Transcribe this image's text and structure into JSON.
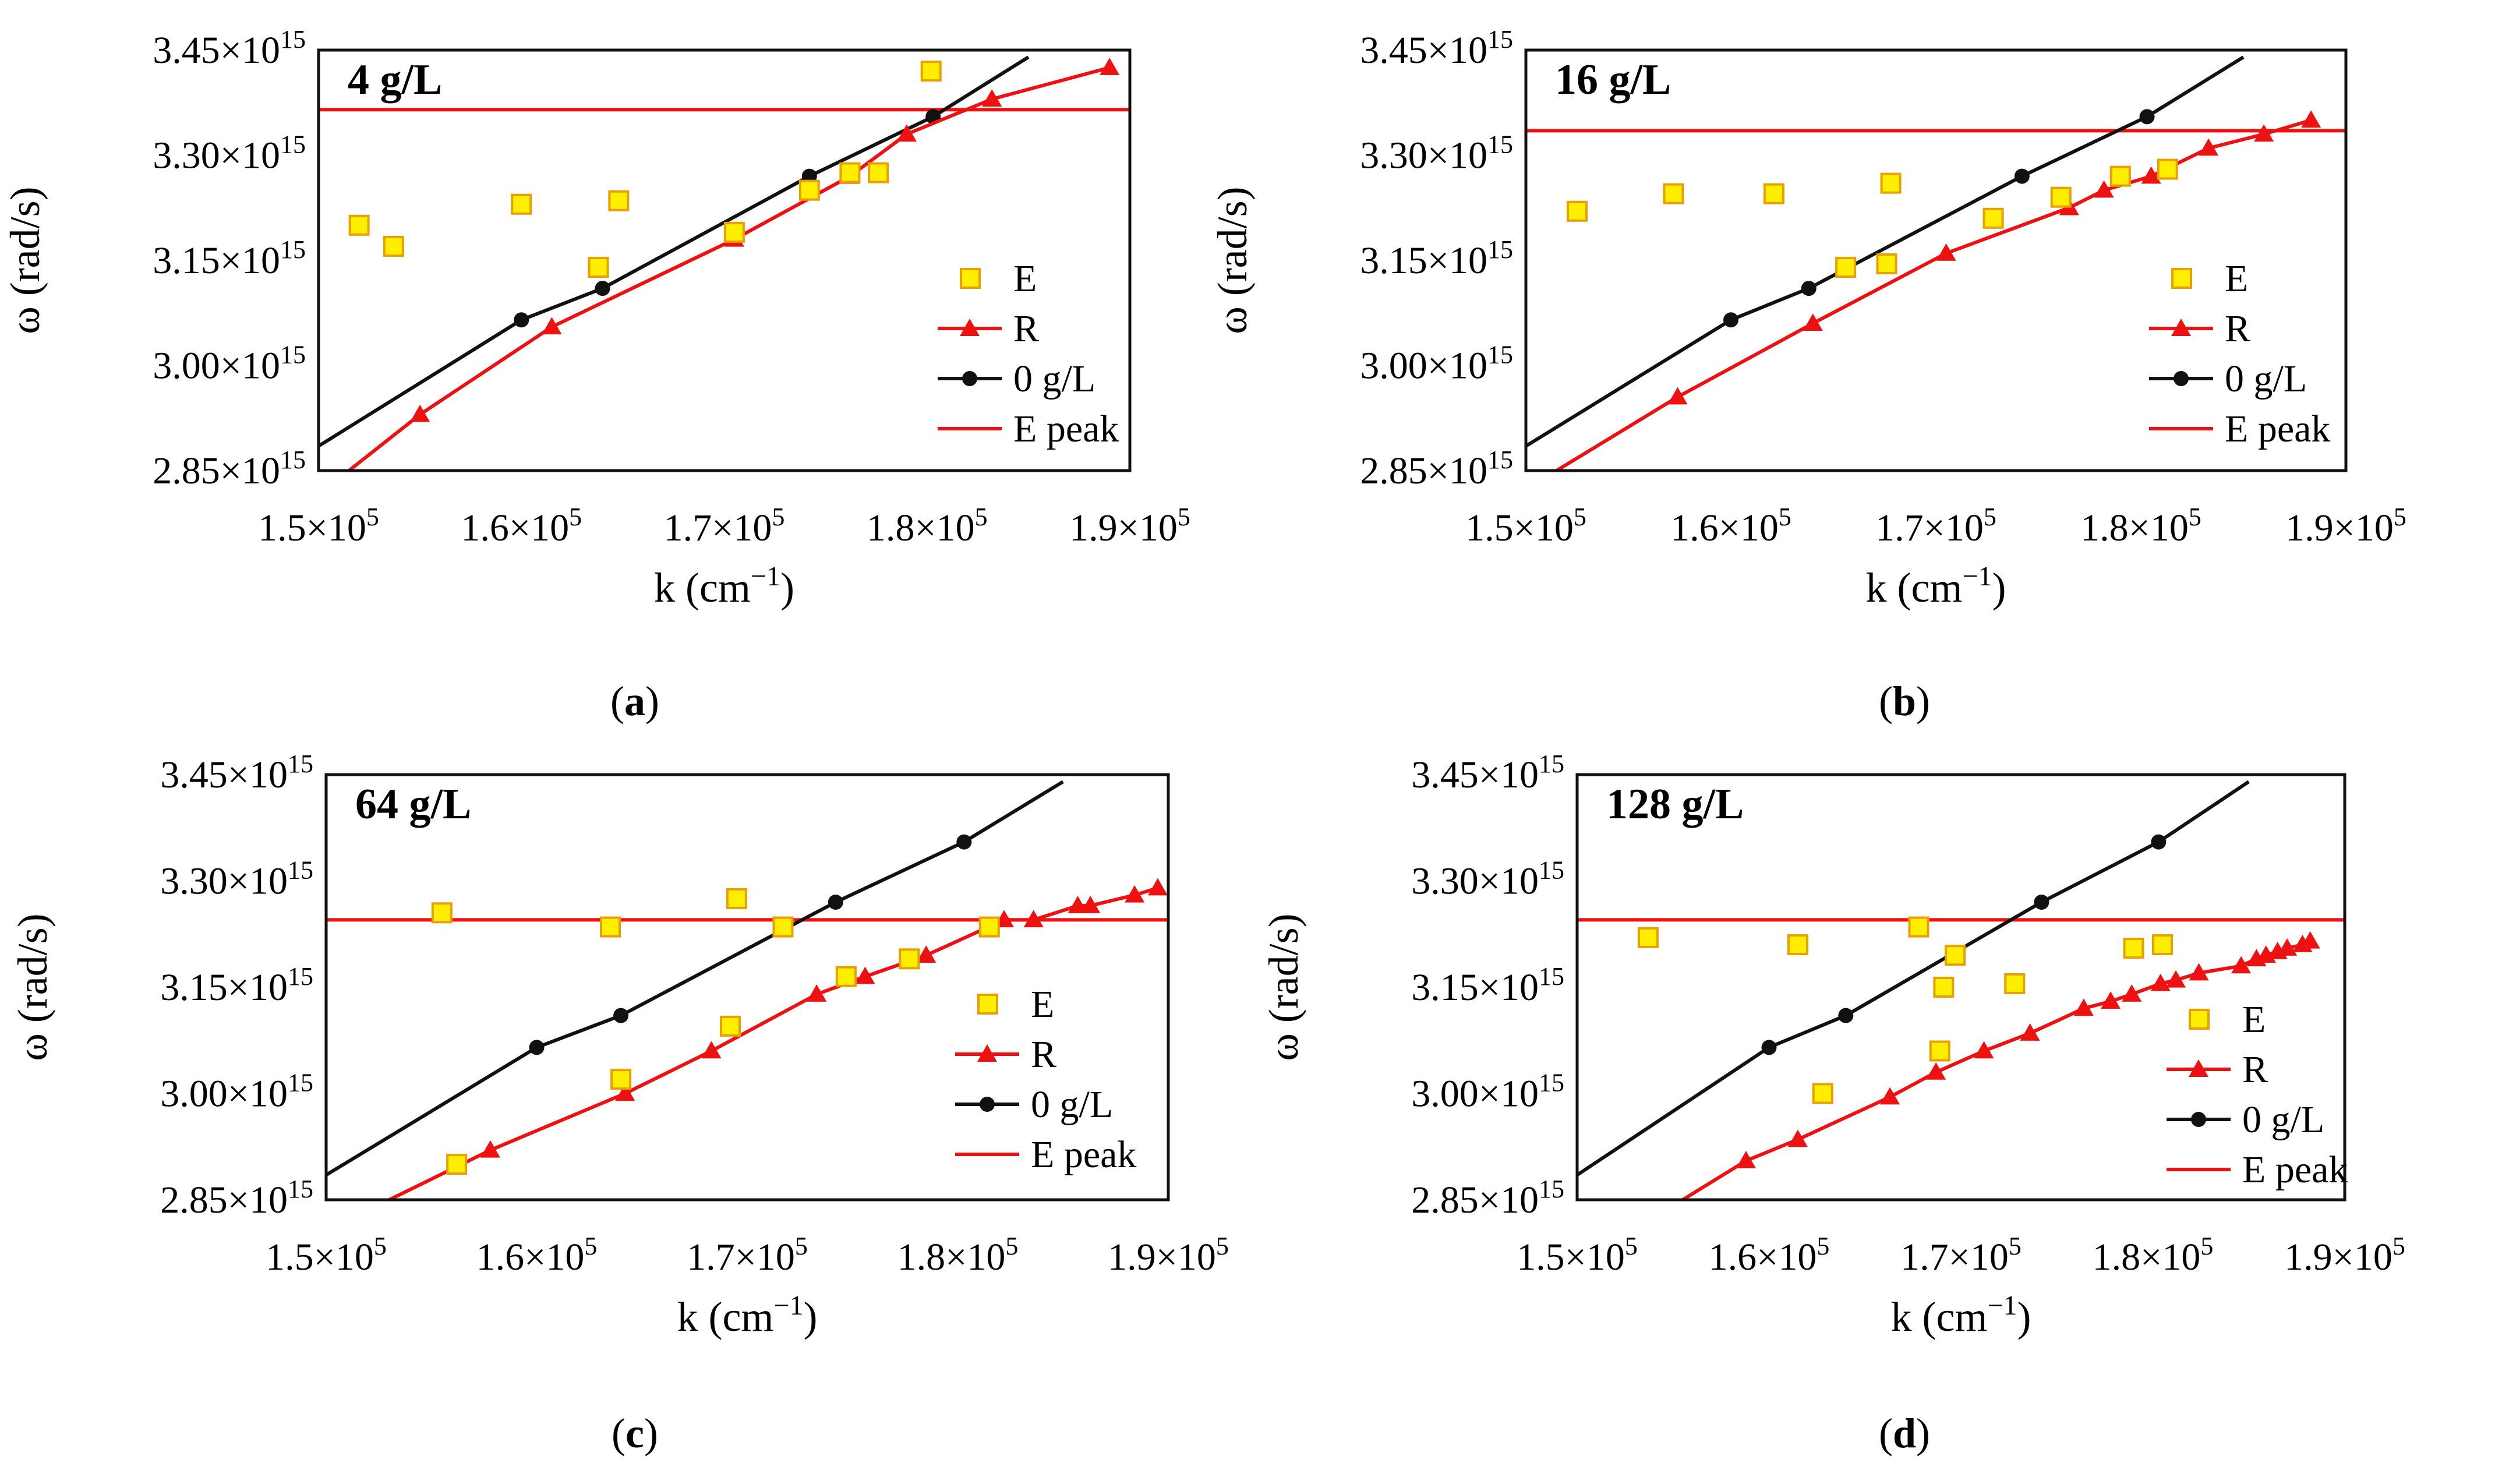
{
  "colors": {
    "E": "#ffee00",
    "E_stroke": "#e8a000",
    "R": "#ee1111",
    "ref": "#111111",
    "peak": "#ee1111",
    "frame": "#111111"
  },
  "axes": {
    "x_ticks": [
      {
        "v": 150000,
        "base": "1.5×10",
        "exp": "5"
      },
      {
        "v": 160000,
        "base": "1.6×10",
        "exp": "5"
      },
      {
        "v": 170000,
        "base": "1.7×10",
        "exp": "5"
      },
      {
        "v": 180000,
        "base": "1.8×10",
        "exp": "5"
      },
      {
        "v": 190000,
        "base": "1.9×10",
        "exp": "5"
      }
    ],
    "y_ticks": [
      {
        "v": 2.85,
        "base": "2.85×10",
        "exp": "15"
      },
      {
        "v": 3.0,
        "base": "3.00×10",
        "exp": "15"
      },
      {
        "v": 3.15,
        "base": "3.15×10",
        "exp": "15"
      },
      {
        "v": 3.3,
        "base": "3.30×10",
        "exp": "15"
      },
      {
        "v": 3.45,
        "base": "3.45×10",
        "exp": "15"
      }
    ],
    "xlabel": "k (cm",
    "xlabel_sup": "−1",
    "xlabel_end": ")",
    "ylabel": "ω (rad/s)"
  },
  "legend": [
    "E",
    "R",
    "0 g/L",
    "E peak"
  ],
  "chart_data": [
    {
      "type": "scatter",
      "id": "a",
      "caption": "a",
      "title": "4 g/L",
      "xlabel": "k (cm−1)",
      "ylabel": "ω (rad/s)",
      "xlim": [
        150000,
        190000
      ],
      "ylim": [
        2.85,
        3.45
      ],
      "y_scale": "×10^15",
      "series": [
        {
          "name": "E",
          "x": [
            152000,
            153700,
            160000,
            163800,
            164800,
            170500,
            174200,
            176200,
            177600,
            180200
          ],
          "y": [
            3.2,
            3.17,
            3.23,
            3.14,
            3.235,
            3.19,
            3.25,
            3.275,
            3.275,
            3.42
          ]
        },
        {
          "name": "R",
          "x": [
            151500,
            155000,
            161500,
            170500,
            176200,
            179000,
            183200,
            189000
          ],
          "y": [
            2.85,
            2.93,
            3.055,
            3.18,
            3.27,
            3.33,
            3.38,
            3.425
          ]
        },
        {
          "name": "0 g/L",
          "x": [
            150000,
            160000,
            164000,
            174200,
            180300,
            185000
          ],
          "y": [
            2.885,
            3.065,
            3.11,
            3.27,
            3.355,
            3.44
          ]
        },
        {
          "name": "E peak",
          "y": 3.365
        }
      ]
    },
    {
      "type": "scatter",
      "id": "b",
      "caption": "b",
      "title": "16 g/L",
      "xlabel": "k (cm−1)",
      "ylabel": "ω (rad/s)",
      "xlim": [
        150000,
        190000
      ],
      "ylim": [
        2.85,
        3.45
      ],
      "y_scale": "×10^15",
      "series": [
        {
          "name": "E",
          "x": [
            152500,
            157200,
            162100,
            165600,
            167600,
            167800,
            172800,
            176100,
            179000,
            181300
          ],
          "y": [
            3.22,
            3.245,
            3.245,
            3.14,
            3.145,
            3.26,
            3.21,
            3.24,
            3.27,
            3.28
          ]
        },
        {
          "name": "R",
          "x": [
            151500,
            157400,
            164000,
            170500,
            176500,
            178200,
            180500,
            183300,
            186000,
            188300
          ],
          "y": [
            2.85,
            2.955,
            3.06,
            3.16,
            3.225,
            3.25,
            3.27,
            3.31,
            3.33,
            3.35
          ]
        },
        {
          "name": "0 g/L",
          "x": [
            150000,
            160000,
            163800,
            174200,
            180300,
            185000
          ],
          "y": [
            2.885,
            3.065,
            3.11,
            3.27,
            3.355,
            3.44
          ]
        },
        {
          "name": "E peak",
          "y": 3.335
        }
      ]
    },
    {
      "type": "scatter",
      "id": "c",
      "caption": "c",
      "title": "64 g/L",
      "xlabel": "k (cm−1)",
      "ylabel": "ω (rad/s)",
      "xlim": [
        150000,
        190000
      ],
      "ylim": [
        2.85,
        3.45
      ],
      "y_scale": "×10^15",
      "series": [
        {
          "name": "E",
          "x": [
            155500,
            163500,
            164000,
            156200,
            169200,
            169500,
            171700,
            174700,
            177700,
            181500
          ],
          "y": [
            3.255,
            3.235,
            3.02,
            2.9,
            3.095,
            3.275,
            3.235,
            3.165,
            3.19,
            3.235
          ]
        },
        {
          "name": "R",
          "x": [
            153000,
            157800,
            164200,
            168300,
            173300,
            175600,
            178500,
            182200,
            183600,
            185700,
            186300,
            188400,
            189500
          ],
          "y": [
            2.85,
            2.92,
            3.0,
            3.06,
            3.14,
            3.165,
            3.195,
            3.245,
            3.245,
            3.265,
            3.265,
            3.28,
            3.29
          ]
        },
        {
          "name": "0 g/L",
          "x": [
            150000,
            160000,
            164000,
            174200,
            180300,
            185000
          ],
          "y": [
            2.885,
            3.065,
            3.11,
            3.27,
            3.355,
            3.44
          ]
        },
        {
          "name": "E peak",
          "y": 3.245
        }
      ]
    },
    {
      "type": "scatter",
      "id": "d",
      "caption": "d",
      "title": "128 g/L",
      "xlabel": "k (cm−1)",
      "ylabel": "ω (rad/s)",
      "xlim": [
        150000,
        190000
      ],
      "ylim": [
        2.85,
        3.45
      ],
      "y_scale": "×10^15",
      "series": [
        {
          "name": "E",
          "x": [
            153700,
            162800,
            161500,
            167800,
            168900,
            169100,
            169700,
            172800,
            179000,
            180500
          ],
          "y": [
            3.22,
            3.0,
            3.21,
            3.235,
            3.06,
            3.15,
            3.195,
            3.155,
            3.205,
            3.21
          ]
        },
        {
          "name": "R",
          "x": [
            155500,
            158800,
            161500,
            166300,
            168700,
            171200,
            173600,
            176400,
            177800,
            178900,
            180400,
            181200,
            182400,
            184600,
            185400,
            185900,
            186500,
            187000,
            187800,
            188200
          ],
          "y": [
            2.85,
            2.905,
            2.935,
            2.995,
            3.03,
            3.06,
            3.085,
            3.12,
            3.13,
            3.14,
            3.155,
            3.16,
            3.17,
            3.18,
            3.19,
            3.195,
            3.2,
            3.205,
            3.21,
            3.215
          ]
        },
        {
          "name": "0 g/L",
          "x": [
            150000,
            160000,
            164000,
            174200,
            180300,
            185000
          ],
          "y": [
            2.885,
            3.065,
            3.11,
            3.27,
            3.355,
            3.44
          ]
        },
        {
          "name": "E peak",
          "y": 3.245
        }
      ]
    }
  ]
}
